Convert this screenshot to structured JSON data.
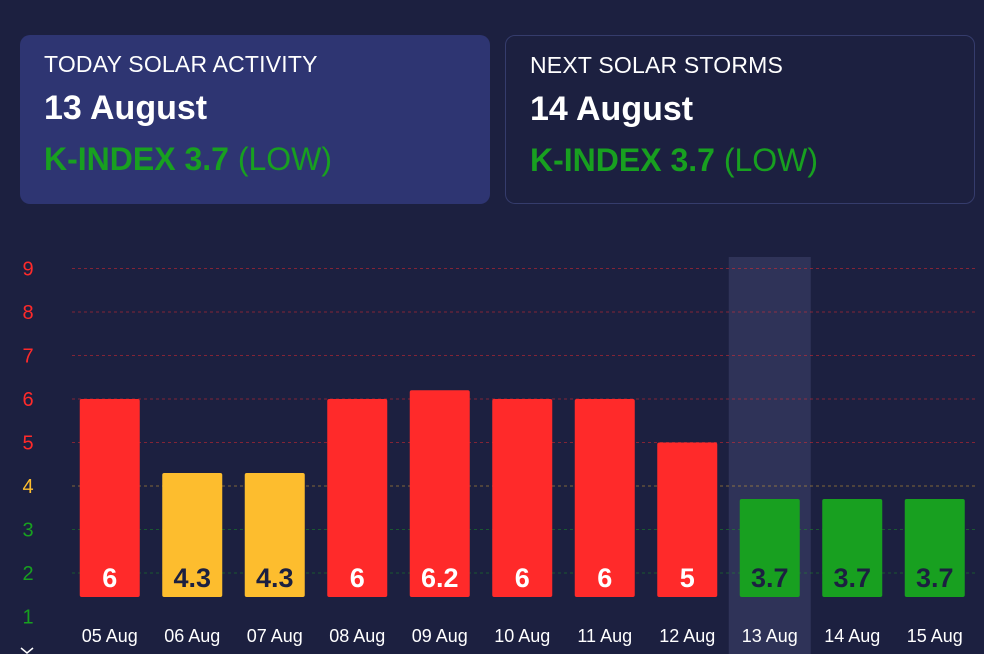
{
  "today_card": {
    "title": "TODAY SOLAR ACTIVITY",
    "date": "13 August",
    "kindex_label": "K-INDEX",
    "kindex_value": "3.7",
    "level": "(LOW)"
  },
  "next_card": {
    "title": "NEXT SOLAR STORMS",
    "date": "14 August",
    "kindex_label": "K-INDEX",
    "kindex_value": "3.7",
    "level": "(LOW)"
  },
  "colors": {
    "storm": "#ff2a2a",
    "moderate": "#fdbd2e",
    "low": "#18a020",
    "background": "#1c2040",
    "highlight": "#2f3358"
  },
  "chart_data": {
    "type": "bar",
    "categories": [
      "05 Aug",
      "06 Aug",
      "07 Aug",
      "08 Aug",
      "09 Aug",
      "10 Aug",
      "11 Aug",
      "12 Aug",
      "13 Aug",
      "14 Aug",
      "15 Aug"
    ],
    "values": [
      6,
      4.3,
      4.3,
      6,
      6.2,
      6,
      6,
      5,
      3.7,
      3.7,
      3.7
    ],
    "value_labels": [
      "6",
      "4.3",
      "4.3",
      "6",
      "6.2",
      "6",
      "6",
      "5",
      "3.7",
      "3.7",
      "3.7"
    ],
    "yticks": [
      "1",
      "2",
      "3",
      "4",
      "5",
      "6",
      "7",
      "8",
      "9"
    ],
    "highlighted_category": "13 Aug",
    "grid": true,
    "legend": "none"
  }
}
